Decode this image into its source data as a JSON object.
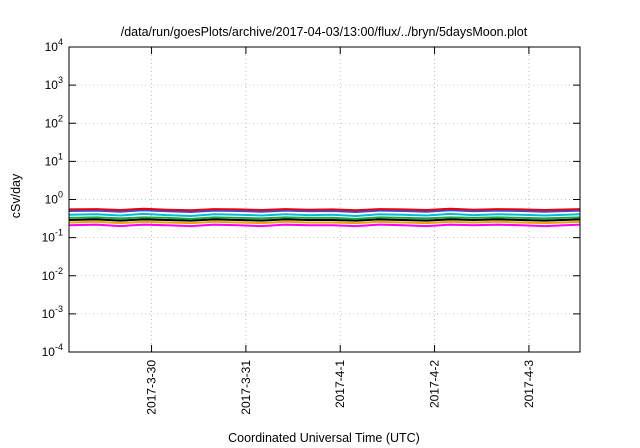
{
  "chart_data": {
    "type": "line",
    "title": "/data/run/goesPlots/archive/2017-04-03/13:00/flux/../bryn/5daysMoon.plot",
    "xlabel": "Coordinated Universal Time (UTC)",
    "ylabel": "cSv/day",
    "yscale": "log",
    "ylim": [
      0.0001,
      10000
    ],
    "y_ticks": [
      {
        "value": 0.0001,
        "base": "10",
        "exp": "-4"
      },
      {
        "value": 0.001,
        "base": "10",
        "exp": "-3"
      },
      {
        "value": 0.01,
        "base": "10",
        "exp": "-2"
      },
      {
        "value": 0.1,
        "base": "10",
        "exp": "-1"
      },
      {
        "value": 1,
        "base": "10",
        "exp": "0"
      },
      {
        "value": 10,
        "base": "10",
        "exp": "1"
      },
      {
        "value": 100,
        "base": "10",
        "exp": "2"
      },
      {
        "value": 1000,
        "base": "10",
        "exp": "3"
      },
      {
        "value": 10000,
        "base": "10",
        "exp": "4"
      }
    ],
    "xlim": [
      "2017-03-29 03:00",
      "2017-04-03 13:00"
    ],
    "x_ticks": [
      "2017-3-30",
      "2017-3-31",
      "2017-4-1",
      "2017-4-2",
      "2017-4-3"
    ],
    "grid": true,
    "legend": "none",
    "x": [
      "2017-03-29 03:00",
      "2017-03-29 10:00",
      "2017-03-29 16:00",
      "2017-03-29 22:00",
      "2017-03-30 04:00",
      "2017-03-30 10:00",
      "2017-03-30 16:00",
      "2017-03-30 22:00",
      "2017-03-31 04:00",
      "2017-03-31 10:00",
      "2017-03-31 16:00",
      "2017-03-31 22:00",
      "2017-04-01 04:00",
      "2017-04-01 10:00",
      "2017-04-01 16:00",
      "2017-04-01 22:00",
      "2017-04-02 04:00",
      "2017-04-02 10:00",
      "2017-04-02 16:00",
      "2017-04-02 22:00",
      "2017-04-03 04:00",
      "2017-04-03 13:00"
    ],
    "series": [
      {
        "color": "#e8000b",
        "values": [
          0.55,
          0.56,
          0.53,
          0.57,
          0.54,
          0.52,
          0.56,
          0.55,
          0.53,
          0.56,
          0.54,
          0.55,
          0.52,
          0.56,
          0.55,
          0.53,
          0.57,
          0.54,
          0.56,
          0.55,
          0.53,
          0.56
        ]
      },
      {
        "color": "#3a4cd6",
        "values": [
          0.5,
          0.51,
          0.48,
          0.52,
          0.49,
          0.47,
          0.51,
          0.5,
          0.48,
          0.51,
          0.49,
          0.5,
          0.47,
          0.51,
          0.5,
          0.48,
          0.52,
          0.49,
          0.51,
          0.5,
          0.48,
          0.51
        ]
      },
      {
        "color": "#00bcd4",
        "values": [
          0.4,
          0.41,
          0.38,
          0.42,
          0.39,
          0.37,
          0.41,
          0.4,
          0.38,
          0.41,
          0.39,
          0.4,
          0.37,
          0.41,
          0.4,
          0.38,
          0.42,
          0.39,
          0.41,
          0.4,
          0.38,
          0.41
        ]
      },
      {
        "color": "#1aa83e",
        "values": [
          0.33,
          0.34,
          0.32,
          0.34,
          0.33,
          0.31,
          0.34,
          0.33,
          0.32,
          0.34,
          0.33,
          0.33,
          0.31,
          0.34,
          0.33,
          0.32,
          0.34,
          0.33,
          0.34,
          0.33,
          0.32,
          0.34
        ]
      },
      {
        "color": "#000000",
        "values": [
          0.29,
          0.3,
          0.28,
          0.3,
          0.29,
          0.28,
          0.3,
          0.29,
          0.28,
          0.3,
          0.29,
          0.29,
          0.28,
          0.3,
          0.29,
          0.28,
          0.3,
          0.29,
          0.3,
          0.29,
          0.28,
          0.3
        ]
      },
      {
        "color": "#f2a100",
        "values": [
          0.25,
          0.26,
          0.24,
          0.26,
          0.25,
          0.24,
          0.26,
          0.25,
          0.24,
          0.26,
          0.25,
          0.25,
          0.24,
          0.26,
          0.25,
          0.24,
          0.26,
          0.25,
          0.26,
          0.25,
          0.24,
          0.26
        ]
      },
      {
        "color": "#ff00ff",
        "values": [
          0.21,
          0.22,
          0.2,
          0.22,
          0.21,
          0.2,
          0.22,
          0.21,
          0.2,
          0.22,
          0.21,
          0.21,
          0.2,
          0.22,
          0.21,
          0.2,
          0.22,
          0.21,
          0.22,
          0.21,
          0.2,
          0.22
        ]
      }
    ]
  }
}
